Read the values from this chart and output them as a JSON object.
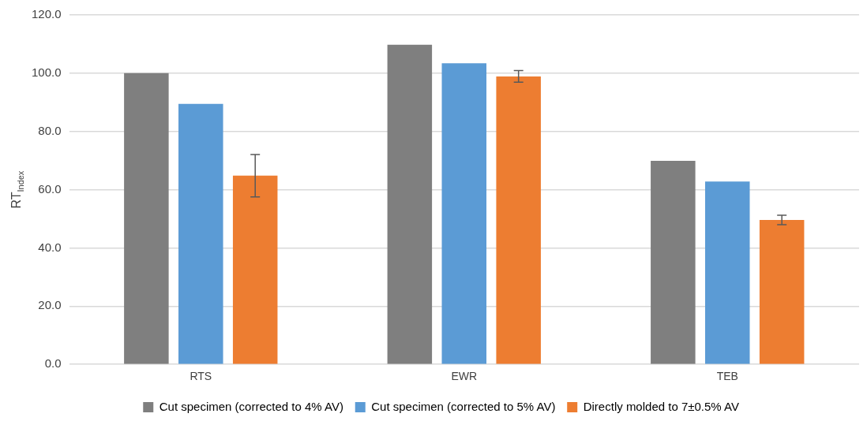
{
  "chart_data": {
    "type": "bar",
    "ylabel": "RT$_{Index}$",
    "categories": [
      "RTS",
      "EWR",
      "TEB"
    ],
    "series": [
      {
        "name": "Cut specimen (corrected to 4% AV)",
        "color": "#7f7f7f",
        "values": [
          100,
          109.8,
          69.9
        ]
      },
      {
        "name": "Cut specimen (corrected to 5% AV)",
        "color": "#5b9bd5",
        "values": [
          89.5,
          103.4,
          62.8
        ]
      },
      {
        "name": "Directly molded to 7±0.5% AV",
        "color": "#ed7d31",
        "values": [
          64.8,
          98.9,
          49.6
        ],
        "errors": [
          7.3,
          2,
          1.6
        ]
      }
    ],
    "ylim": [
      0,
      120
    ],
    "yticks": [
      {
        "value": 0,
        "label": "0.0"
      },
      {
        "value": 20,
        "label": "20.0"
      },
      {
        "value": 40,
        "label": "40.0"
      },
      {
        "value": 60,
        "label": "60.0"
      },
      {
        "value": 80,
        "label": "80.0"
      },
      {
        "value": 100,
        "label": "100.0"
      },
      {
        "value": 120,
        "label": "120.0"
      }
    ],
    "grid": "y",
    "legend": "bottom"
  }
}
